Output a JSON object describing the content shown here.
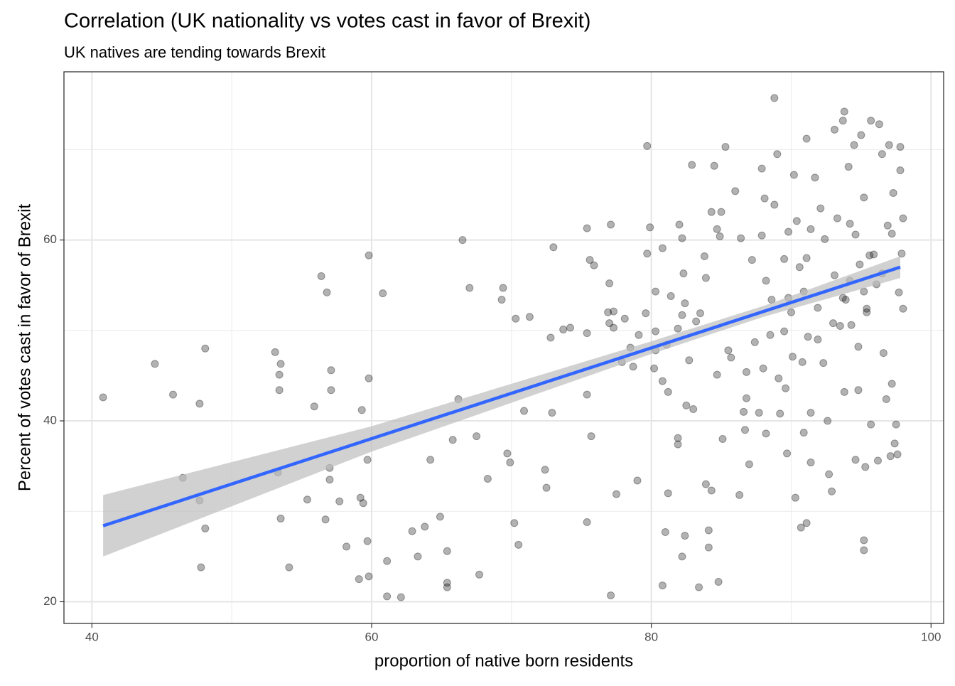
{
  "chart_data": {
    "type": "scatter",
    "title": "Correlation (UK nationality vs votes cast in favor of Brexit)",
    "subtitle": "UK natives are tending towards Brexit",
    "x_label": "proportion of native born residents",
    "y_label": "Percent of votes cast in favor of Brexit",
    "xlim": [
      38.0,
      100.9
    ],
    "ylim": [
      17.6,
      78.6
    ],
    "xticks": [
      40,
      60,
      80,
      100
    ],
    "yticks": [
      20,
      40,
      60
    ],
    "minor_xticks": [
      50,
      70,
      90
    ],
    "minor_yticks": [
      30,
      50,
      70
    ],
    "grid": true,
    "point_color": "#000000",
    "line_color": "#3366ff",
    "band_color": "#bebebe",
    "x": [
      40.8,
      44.5,
      45.8,
      46.5,
      47.7,
      47.7,
      48.1,
      48.1,
      47.8,
      53.1,
      53.5,
      53.4,
      53.4,
      53.5,
      53.3,
      54.1,
      55.4,
      55.9,
      56.4,
      56.8,
      56.7,
      57.0,
      57.0,
      57.1,
      57.1,
      57.7,
      58.2,
      59.1,
      59.3,
      59.2,
      59.4,
      59.8,
      59.8,
      59.7,
      59.7,
      59.8,
      60.8,
      61.1,
      61.1,
      62.1,
      62.9,
      63.3,
      63.8,
      64.2,
      64.9,
      65.4,
      65.4,
      65.4,
      65.8,
      66.2,
      66.5,
      67.0,
      67.5,
      67.7,
      68.3,
      69.3,
      69.4,
      69.7,
      69.9,
      70.2,
      70.3,
      70.5,
      70.9,
      71.3,
      72.4,
      72.5,
      72.8,
      72.9,
      73.0,
      73.7,
      74.2,
      75.4,
      75.4,
      75.4,
      75.4,
      75.6,
      75.7,
      75.9,
      76.9,
      77.0,
      77.1,
      77.1,
      77.0,
      77.3,
      77.3,
      77.5,
      77.9,
      78.1,
      78.5,
      78.7,
      79.0,
      79.1,
      79.6,
      79.7,
      79.7,
      79.9,
      80.2,
      80.3,
      80.3,
      80.3,
      80.8,
      80.8,
      80.8,
      81.0,
      81.2,
      81.2,
      81.1,
      81.4,
      81.9,
      81.9,
      81.9,
      82.0,
      82.2,
      82.2,
      82.3,
      82.2,
      82.4,
      82.4,
      82.7,
      82.5,
      82.9,
      83.0,
      83.2,
      83.4,
      83.5,
      83.8,
      83.9,
      83.9,
      84.1,
      84.1,
      84.3,
      84.3,
      84.5,
      84.7,
      84.7,
      84.8,
      84.9,
      85.1,
      85.0,
      85.3,
      85.5,
      85.7,
      86.0,
      86.3,
      86.4,
      86.6,
      86.7,
      86.8,
      86.8,
      87.0,
      87.2,
      87.4,
      88.8,
      87.9,
      88.1,
      87.9,
      88.2,
      88.0,
      87.7,
      88.2,
      88.5,
      88.6,
      88.8,
      89.0,
      89.1,
      89.2,
      89.5,
      89.5,
      89.8,
      89.6,
      89.7,
      89.8,
      90.1,
      90.3,
      90.2,
      90.4,
      90.7,
      90.6,
      90.9,
      90.9,
      91.1,
      91.1,
      91.2,
      91.1,
      91.4,
      91.4,
      91.4,
      91.7,
      91.9,
      92.1,
      92.3,
      92.4,
      92.6,
      92.7,
      92.9,
      93.1,
      93.1,
      93.3,
      93.5,
      93.7,
      93.8,
      93.8,
      93.9,
      94.1,
      94.2,
      94.3,
      94.5,
      94.6,
      94.8,
      94.9,
      95.0,
      95.2,
      95.2,
      95.2,
      95.3,
      95.4,
      95.7,
      95.7,
      95.9,
      96.2,
      96.3,
      96.5,
      96.6,
      96.8,
      96.9,
      97.0,
      97.2,
      97.1,
      97.3,
      97.4,
      97.5,
      97.6,
      97.7,
      97.8,
      97.8,
      97.9,
      98.0,
      98.0,
      97.2,
      96.1,
      95.4,
      94.8,
      93.7,
      93.0,
      91.9,
      90.8,
      90.0,
      94.6,
      95.6,
      96.5,
      94.2,
      95.2
    ],
    "y": [
      42.6,
      46.3,
      42.9,
      33.7,
      41.9,
      31.2,
      48.0,
      28.1,
      23.8,
      47.6,
      46.3,
      45.1,
      43.4,
      29.2,
      34.3,
      23.8,
      31.3,
      41.6,
      56.0,
      54.2,
      29.1,
      34.8,
      33.5,
      45.6,
      43.4,
      31.1,
      26.1,
      22.5,
      41.2,
      31.5,
      30.9,
      58.3,
      44.7,
      35.7,
      26.7,
      22.8,
      54.1,
      24.5,
      20.6,
      20.5,
      27.8,
      25.0,
      28.3,
      35.7,
      29.4,
      25.6,
      22.1,
      21.6,
      37.9,
      42.4,
      60.0,
      54.7,
      38.3,
      23.0,
      33.6,
      53.4,
      54.7,
      36.4,
      35.4,
      28.7,
      51.3,
      26.3,
      41.1,
      51.5,
      34.6,
      32.6,
      49.2,
      40.9,
      59.2,
      50.1,
      50.3,
      61.3,
      42.9,
      49.7,
      28.8,
      57.8,
      38.3,
      57.2,
      52.0,
      55.2,
      20.7,
      61.7,
      50.8,
      52.1,
      50.3,
      31.9,
      46.5,
      51.3,
      48.1,
      46.0,
      33.4,
      49.5,
      51.9,
      70.4,
      58.5,
      61.4,
      45.8,
      47.8,
      49.9,
      54.3,
      44.4,
      21.8,
      59.1,
      27.7,
      43.2,
      32.0,
      48.4,
      53.8,
      50.2,
      38.1,
      37.4,
      61.7,
      60.2,
      51.7,
      56.3,
      25.0,
      27.3,
      53.0,
      46.7,
      41.7,
      68.3,
      41.3,
      51.0,
      21.6,
      51.9,
      58.2,
      55.8,
      33.0,
      27.9,
      26.0,
      32.3,
      63.1,
      68.2,
      61.2,
      45.1,
      22.2,
      60.4,
      38.0,
      63.1,
      70.3,
      47.8,
      47.0,
      65.4,
      31.8,
      60.2,
      41.0,
      39.0,
      45.4,
      42.5,
      35.2,
      57.8,
      48.7,
      75.7,
      67.9,
      64.6,
      60.5,
      55.5,
      45.8,
      40.9,
      38.6,
      49.5,
      53.4,
      63.9,
      69.5,
      44.7,
      40.8,
      49.9,
      57.9,
      60.9,
      43.6,
      36.4,
      53.6,
      47.1,
      31.5,
      67.2,
      62.1,
      28.2,
      57.0,
      54.3,
      38.7,
      58.0,
      71.2,
      49.3,
      28.7,
      40.9,
      35.4,
      61.2,
      66.9,
      52.5,
      63.5,
      46.4,
      60.1,
      40.0,
      34.1,
      32.2,
      72.2,
      56.1,
      62.4,
      50.5,
      73.2,
      74.2,
      43.2,
      53.4,
      68.1,
      61.8,
      50.6,
      70.5,
      35.7,
      43.4,
      57.3,
      71.6,
      64.7,
      26.8,
      25.7,
      34.9,
      52.4,
      73.2,
      39.6,
      58.4,
      35.6,
      72.8,
      69.5,
      47.5,
      42.4,
      61.6,
      70.5,
      44.1,
      36.1,
      65.2,
      37.5,
      39.6,
      36.3,
      54.2,
      70.3,
      67.7,
      58.5,
      52.4,
      62.4,
      60.7,
      55.1,
      52.0,
      48.2,
      53.6,
      50.8,
      49.0,
      46.5,
      52.0,
      60.6,
      58.3,
      56.3,
      55.5,
      54.3
    ],
    "trend": {
      "x": [
        40.8,
        97.8
      ],
      "y": [
        28.4,
        57.0
      ]
    },
    "band": {
      "x": [
        40.8,
        60,
        80,
        88,
        97.8
      ],
      "lower": [
        25.0,
        36.6,
        47.4,
        51.5,
        55.8
      ],
      "upper": [
        31.8,
        39.4,
        48.8,
        52.7,
        58.2
      ]
    }
  }
}
